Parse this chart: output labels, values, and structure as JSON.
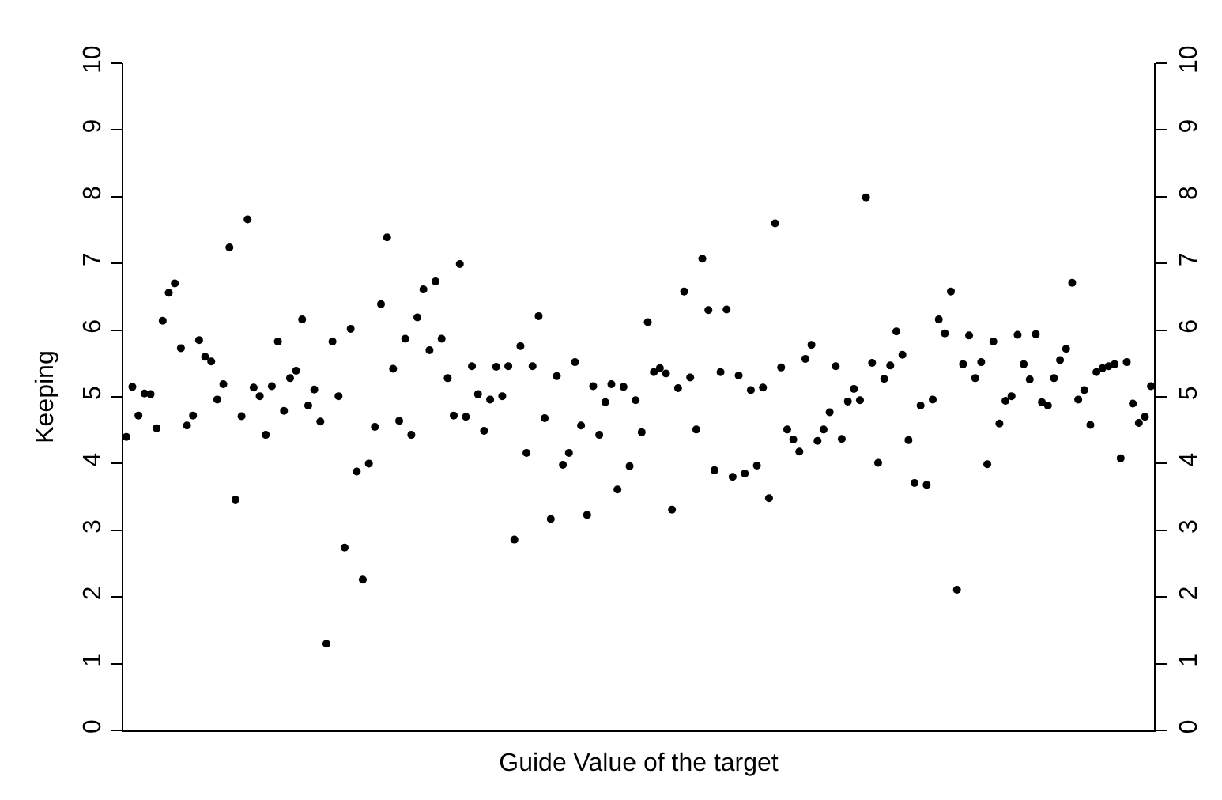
{
  "chart_data": {
    "type": "scatter",
    "xlabel": "Guide Value of the target",
    "ylabel": "Keeping",
    "categories": [
      null,
      null,
      null,
      null,
      null,
      null,
      null,
      null,
      null,
      null,
      null,
      null,
      null,
      null,
      null,
      null,
      null,
      null,
      null,
      null,
      null,
      null,
      null,
      null,
      null,
      null,
      null,
      null,
      null,
      null,
      null,
      null,
      null,
      null,
      null,
      null,
      null,
      null,
      null,
      null,
      null,
      null,
      null,
      null,
      null,
      null,
      null,
      null,
      null,
      null,
      null,
      null,
      null,
      null,
      null,
      null,
      null,
      null,
      null,
      null,
      null,
      null,
      null,
      null,
      null,
      null,
      null,
      null,
      null,
      null,
      null,
      null,
      null,
      null,
      null,
      null,
      null,
      null,
      null,
      null,
      null,
      null,
      null,
      null,
      null,
      null,
      null,
      null,
      null,
      null,
      null,
      null,
      null,
      null,
      null,
      null,
      null,
      null,
      null,
      null,
      null,
      null,
      null,
      null,
      null,
      null,
      null,
      null,
      null,
      null,
      null,
      null,
      null,
      null,
      null,
      null,
      null,
      null,
      null,
      null,
      null,
      null,
      null,
      null,
      null,
      null,
      null,
      null,
      null,
      null,
      null,
      null,
      null,
      null,
      null,
      null,
      null,
      null,
      null,
      null,
      null,
      null,
      null,
      null,
      null,
      null,
      null,
      null,
      null,
      null,
      null,
      null,
      null,
      null,
      null,
      null,
      null,
      null,
      null,
      null,
      null,
      null,
      null,
      null,
      null,
      null,
      null,
      null,
      null,
      null
    ],
    "series": [
      {
        "color": "#000000",
        "values": [
          4.4,
          5.15,
          4.72,
          5.05,
          5.04,
          4.53,
          6.14,
          6.56,
          6.7,
          5.73,
          4.57,
          4.72,
          5.85,
          5.6,
          5.53,
          4.96,
          5.19,
          7.24,
          3.46,
          4.71,
          7.66,
          5.14,
          5.01,
          4.43,
          5.16,
          5.83,
          4.79,
          5.28,
          5.39,
          6.16,
          4.87,
          5.11,
          4.63,
          1.3,
          5.83,
          5.01,
          2.74,
          6.02,
          3.88,
          2.26,
          4.0,
          4.55,
          6.39,
          7.39,
          5.42,
          4.64,
          5.87,
          4.43,
          6.19,
          6.61,
          5.7,
          6.73,
          5.87,
          5.28,
          4.72,
          6.99,
          4.7,
          5.46,
          5.04,
          4.49,
          4.96,
          5.45,
          5.01,
          5.46,
          2.86,
          5.76,
          4.16,
          5.46,
          6.21,
          4.68,
          3.17,
          5.31,
          3.98,
          4.16,
          5.52,
          4.57,
          3.23,
          5.16,
          4.43,
          4.92,
          5.19,
          3.61,
          5.15,
          3.96,
          4.95,
          4.47,
          6.12,
          5.37,
          5.43,
          5.35,
          3.31,
          5.13,
          6.58,
          5.29,
          4.51,
          7.07,
          6.3,
          3.9,
          5.37,
          6.31,
          3.8,
          5.32,
          3.85,
          5.1,
          3.97,
          5.14,
          3.48,
          7.6,
          5.44,
          4.51,
          4.36,
          4.18,
          5.57,
          5.78,
          4.34,
          4.51,
          4.77,
          5.46,
          4.37,
          4.93,
          5.12,
          4.95,
          7.99,
          5.51,
          4.01,
          5.27,
          5.47,
          5.98,
          5.63,
          4.35,
          3.71,
          4.87,
          3.68,
          4.96,
          6.16,
          5.95,
          6.58,
          2.11,
          5.49,
          5.92,
          5.28,
          5.52,
          3.99,
          5.83,
          4.6,
          4.94,
          5.01,
          5.93,
          5.49,
          5.26,
          5.94,
          4.92,
          4.87,
          5.28,
          5.55,
          5.72,
          6.71,
          4.96,
          5.1,
          4.58,
          5.37,
          5.43,
          5.46,
          5.49,
          4.08,
          5.52,
          4.9,
          4.61,
          4.7,
          5.16
        ]
      }
    ],
    "ylim": [
      0,
      10
    ],
    "yticks": [
      0,
      1,
      2,
      3,
      4,
      5,
      6,
      7,
      8,
      9,
      10
    ],
    "y2lim": [
      0,
      10
    ],
    "y2ticks": [
      0,
      1,
      2,
      3,
      4,
      5,
      6,
      7,
      8,
      9,
      10
    ],
    "marker": "circle",
    "grid": false
  }
}
